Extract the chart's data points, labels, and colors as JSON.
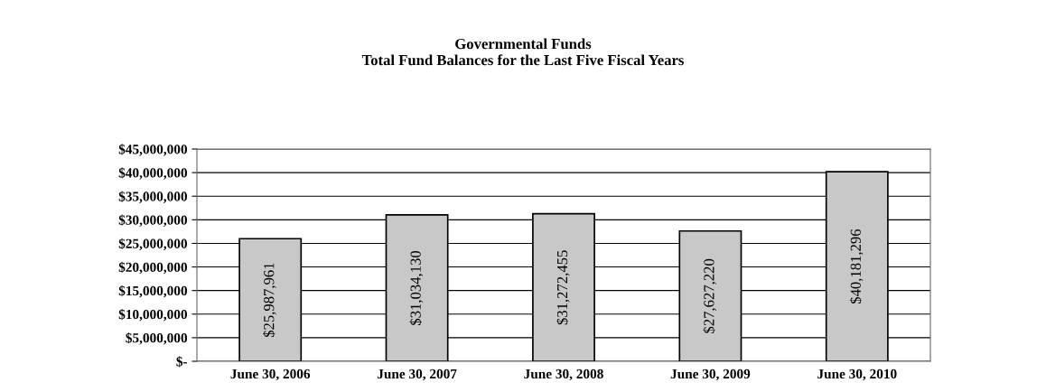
{
  "chart_data": {
    "type": "bar",
    "title": "Governmental Funds",
    "subtitle": "Total Fund Balances for the Last Five Fiscal Years",
    "categories": [
      "June 30, 2006",
      "June 30, 2007",
      "June 30, 2008",
      "June 30, 2009",
      "June 30, 2010"
    ],
    "values": [
      25987961,
      31034130,
      31272455,
      27627220,
      40181296
    ],
    "value_labels": [
      "$25,987,961",
      "$31,034,130",
      "$31,272,455",
      "$27,627,220",
      "$40,181,296"
    ],
    "color": "#c8c8c8",
    "ylim": [
      0,
      45000000
    ],
    "yticks": [
      {
        "value": 0,
        "label": "$-"
      },
      {
        "value": 5000000,
        "label": "$5,000,000"
      },
      {
        "value": 10000000,
        "label": "$10,000,000"
      },
      {
        "value": 15000000,
        "label": "$15,000,000"
      },
      {
        "value": 20000000,
        "label": "$20,000,000"
      },
      {
        "value": 25000000,
        "label": "$25,000,000"
      },
      {
        "value": 30000000,
        "label": "$30,000,000"
      },
      {
        "value": 35000000,
        "label": "$35,000,000"
      },
      {
        "value": 40000000,
        "label": "$40,000,000"
      },
      {
        "value": 45000000,
        "label": "$45,000,000"
      }
    ],
    "grid": "y"
  }
}
